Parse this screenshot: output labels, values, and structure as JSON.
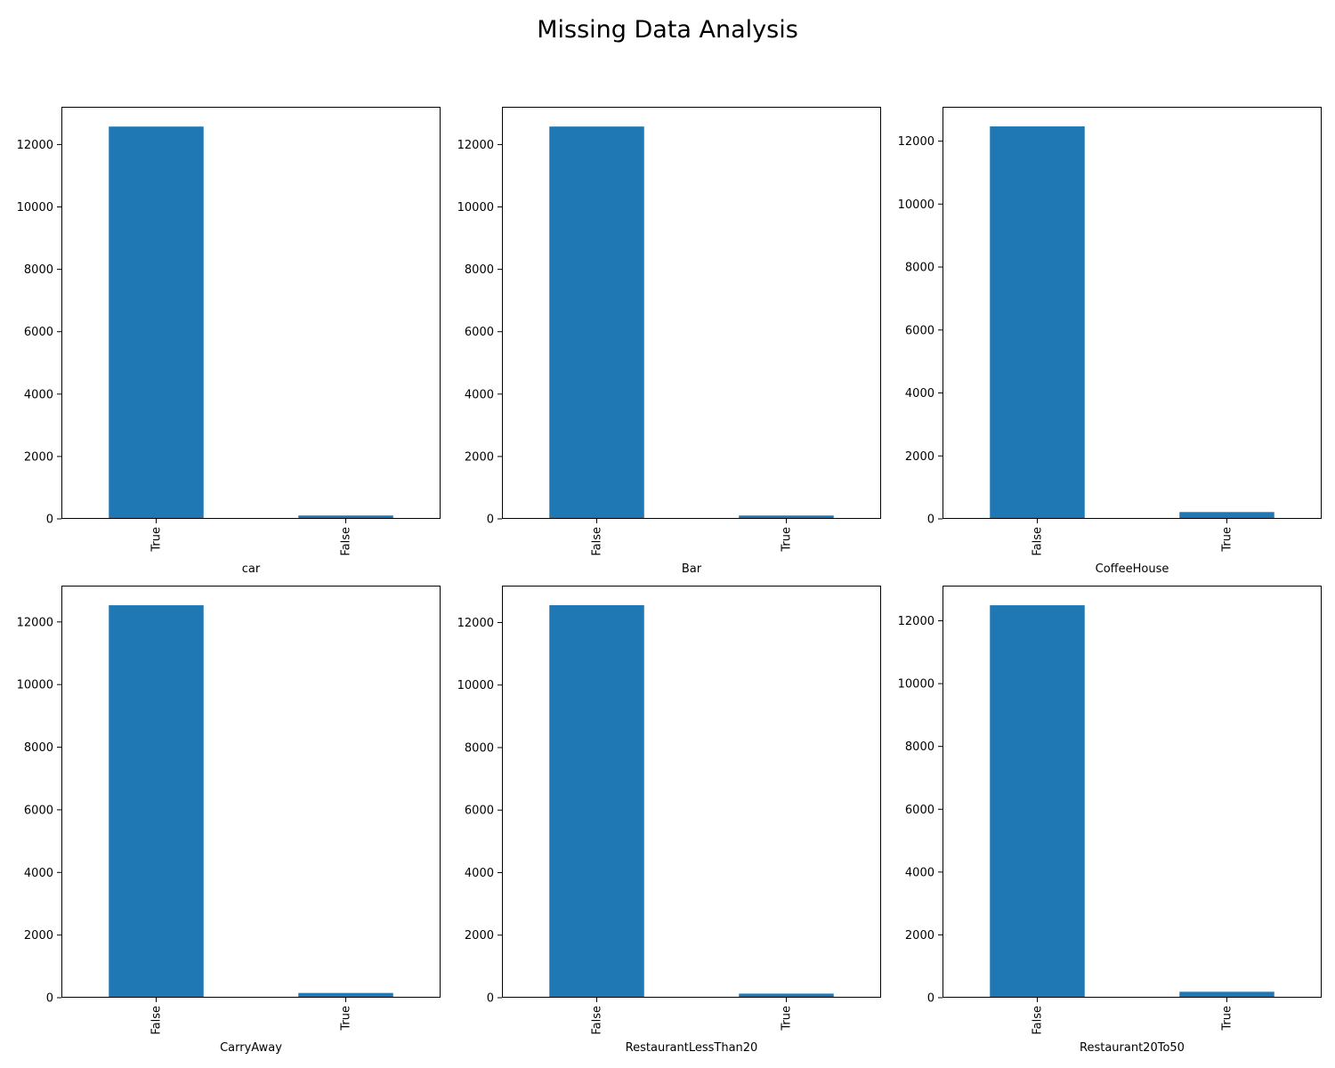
{
  "title": "Missing Data Analysis",
  "colors": {
    "bar": "#1f77b4",
    "axes": "#000000",
    "background": "#ffffff"
  },
  "chart_data": [
    {
      "type": "bar",
      "xlabel": "car",
      "ylabel": "",
      "categories": [
        "True",
        "False"
      ],
      "values": [
        12576,
        108
      ],
      "yticks": [
        0,
        2000,
        4000,
        6000,
        8000,
        10000,
        12000
      ],
      "ylim": [
        0,
        13210
      ],
      "grid": false
    },
    {
      "type": "bar",
      "xlabel": "Bar",
      "ylabel": "",
      "categories": [
        "False",
        "True"
      ],
      "values": [
        12577,
        107
      ],
      "yticks": [
        0,
        2000,
        4000,
        6000,
        8000,
        10000,
        12000
      ],
      "ylim": [
        0,
        13210
      ],
      "grid": false
    },
    {
      "type": "bar",
      "xlabel": "CoffeeHouse",
      "ylabel": "",
      "categories": [
        "False",
        "True"
      ],
      "values": [
        12467,
        217
      ],
      "yticks": [
        0,
        2000,
        4000,
        6000,
        8000,
        10000,
        12000
      ],
      "ylim": [
        0,
        13090
      ],
      "grid": false
    },
    {
      "type": "bar",
      "xlabel": "CarryAway",
      "ylabel": "",
      "categories": [
        "False",
        "True"
      ],
      "values": [
        12533,
        151
      ],
      "yticks": [
        0,
        2000,
        4000,
        6000,
        8000,
        10000,
        12000
      ],
      "ylim": [
        0,
        13160
      ],
      "grid": false
    },
    {
      "type": "bar",
      "xlabel": "RestaurantLessThan20",
      "ylabel": "",
      "categories": [
        "False",
        "True"
      ],
      "values": [
        12554,
        130
      ],
      "yticks": [
        0,
        2000,
        4000,
        6000,
        8000,
        10000,
        12000
      ],
      "ylim": [
        0,
        13180
      ],
      "grid": false
    },
    {
      "type": "bar",
      "xlabel": "Restaurant20To50",
      "ylabel": "",
      "categories": [
        "False",
        "True"
      ],
      "values": [
        12495,
        189
      ],
      "yticks": [
        0,
        2000,
        4000,
        6000,
        8000,
        10000,
        12000
      ],
      "ylim": [
        0,
        13120
      ],
      "grid": false
    }
  ]
}
